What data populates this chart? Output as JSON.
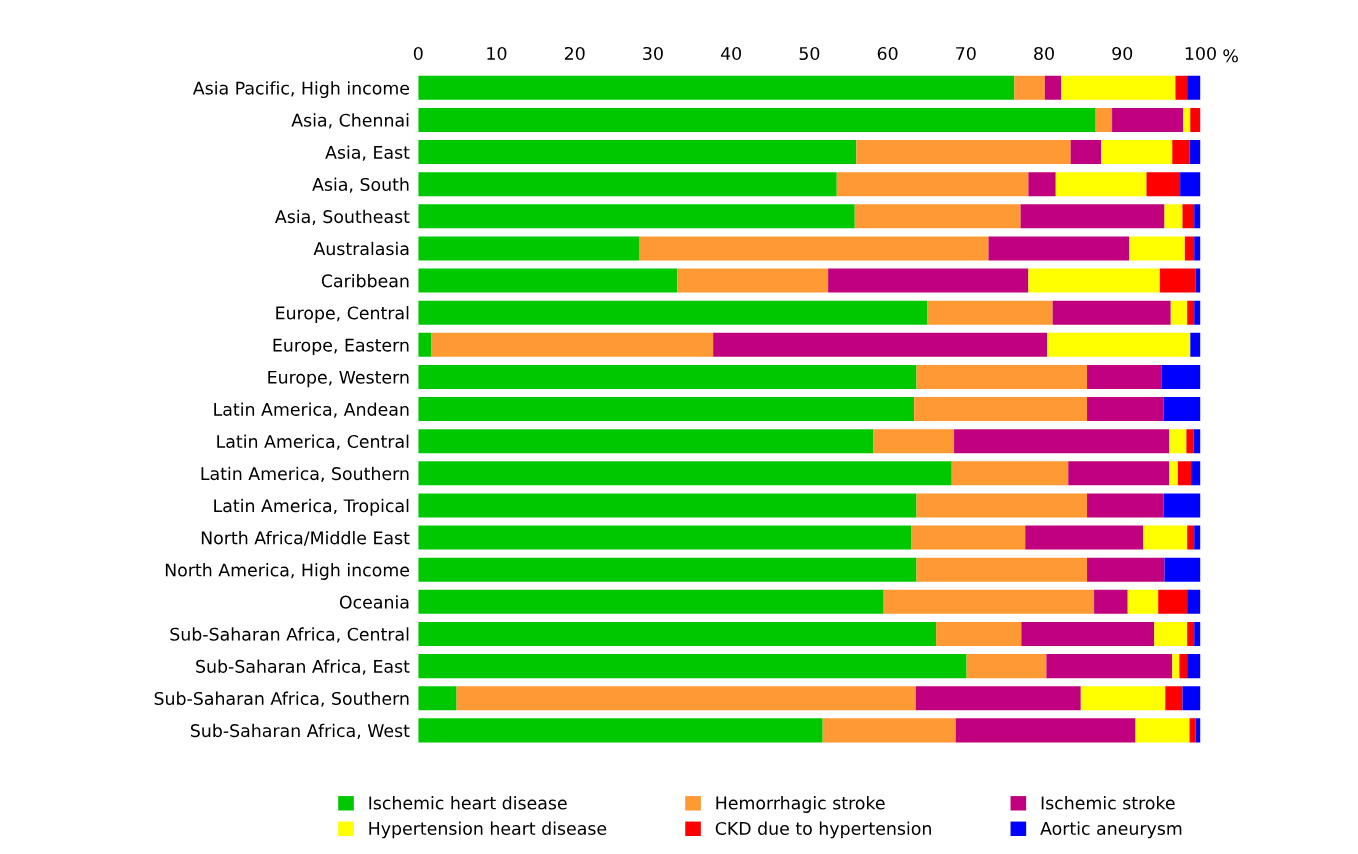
{
  "chart_data": {
    "type": "bar",
    "orientation": "horizontal",
    "stacked": true,
    "xlabel": "%",
    "categories": [
      "Asia Pacific, High income",
      "Asia, Chennai",
      "Asia, East",
      "Asia, South",
      "Asia, Southeast",
      "Australasia",
      "Caribbean",
      "Europe, Central",
      "Europe, Eastern",
      "Europe, Western",
      "Latin America, Andean",
      "Latin America, Central",
      "Latin America, Southern",
      "Latin America, Tropical",
      "North Africa/Middle East",
      "North America, High income",
      "Oceania",
      "Sub-Saharan Africa, Central",
      "Sub-Saharan Africa, East",
      "Sub-Saharan Africa, Southern",
      "Sub-Saharan Africa, West"
    ],
    "series": [
      {
        "name": "Ischemic heart disease",
        "color": "#00c800",
        "values": [
          76.2,
          86.6,
          56.0,
          53.5,
          55.8,
          28.3,
          33.1,
          65.1,
          1.7,
          63.7,
          63.4,
          58.2,
          68.2,
          63.7,
          63.0,
          63.7,
          59.5,
          66.2,
          70.1,
          4.9,
          51.7
        ]
      },
      {
        "name": "Hemorrhagic stroke",
        "color": "#ff9933",
        "values": [
          3.9,
          2.1,
          27.4,
          24.5,
          21.2,
          44.6,
          19.3,
          16.0,
          36.0,
          21.8,
          22.1,
          10.3,
          14.9,
          21.8,
          14.6,
          21.8,
          26.9,
          10.9,
          10.2,
          58.7,
          17.0
        ]
      },
      {
        "name": "Ischemic stroke",
        "color": "#c0007f",
        "values": [
          2.1,
          9.1,
          3.9,
          3.5,
          18.4,
          18.0,
          25.6,
          15.1,
          42.7,
          9.5,
          9.8,
          27.5,
          12.9,
          9.8,
          15.1,
          9.9,
          4.3,
          17.0,
          16.1,
          21.1,
          23.0
        ]
      },
      {
        "name": "Hypertension heart disease",
        "color": "#ffff00",
        "values": [
          14.6,
          0.9,
          9.1,
          11.6,
          2.3,
          7.1,
          16.8,
          2.1,
          18.3,
          0,
          0,
          2.2,
          1.1,
          0,
          5.6,
          0,
          3.9,
          4.2,
          0.9,
          10.8,
          6.9
        ]
      },
      {
        "name": "CKD due to hypertension",
        "color": "#ff0000",
        "values": [
          1.5,
          1.3,
          2.2,
          4.3,
          1.5,
          1.2,
          4.6,
          0.9,
          0,
          0,
          0,
          0.9,
          1.7,
          0,
          0.9,
          0,
          3.7,
          0.9,
          1.0,
          2.2,
          0.8
        ]
      },
      {
        "name": "Aortic aneurysm",
        "color": "#0000ff",
        "values": [
          1.7,
          0,
          1.4,
          2.6,
          0.8,
          0.8,
          0.6,
          0.8,
          1.3,
          5.0,
          4.7,
          0.9,
          1.2,
          4.7,
          0.8,
          4.6,
          1.7,
          0.8,
          1.7,
          2.3,
          0.6
        ]
      }
    ],
    "xlim": [
      0,
      100
    ],
    "xticks": [
      0,
      10,
      20,
      30,
      40,
      50,
      60,
      70,
      80,
      90,
      100
    ],
    "grid": false,
    "legend": "bottom"
  }
}
